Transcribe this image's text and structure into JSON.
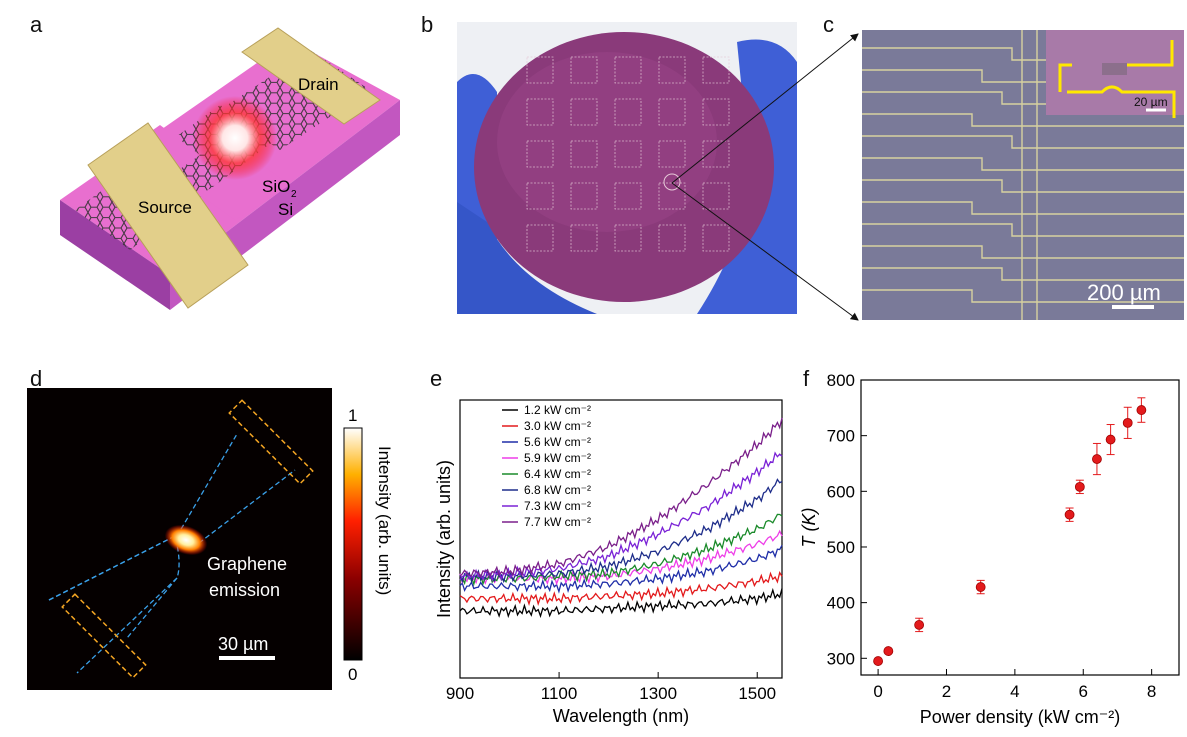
{
  "panels": {
    "a": {
      "letter": "a",
      "labels": {
        "drain": "Drain",
        "source": "Source",
        "sio2": "SiO",
        "sio2_sub": "2",
        "si": "Si"
      }
    },
    "b": {
      "letter": "b"
    },
    "c": {
      "letter": "c",
      "scale_main": "200 µm",
      "scale_inset": "20 µm"
    },
    "d": {
      "letter": "d",
      "annotation_line1": "Graphene",
      "annotation_line2": "emission",
      "scale": "30 µm",
      "colorbar_label": "Intensity (arb. units)",
      "colorbar_max": "1",
      "colorbar_min": "0"
    },
    "e": {
      "letter": "e"
    },
    "f": {
      "letter": "f"
    }
  },
  "colors": {
    "accent_red": "#e31a1c",
    "dashed_blue": "#3aa0e8",
    "dashed_orange": "#f5a623",
    "substrate_pink": "#e86fcf",
    "wafer_purple": "#8a3a7a",
    "glove_blue": "#3f5fd6"
  },
  "chart_data": [
    {
      "type": "line",
      "xlabel": "Wavelength (nm)",
      "ylabel": "Intensity (arb. units)",
      "xlim": [
        900,
        1550
      ],
      "x_ticks": [
        "900",
        "1100",
        "1300",
        "1500"
      ],
      "x_tick_values": [
        900,
        1100,
        1300,
        1500
      ],
      "legend_position": "top-left",
      "series": [
        {
          "name": "1.2 kW cm⁻²",
          "color": "#000000",
          "x": [
            900,
            1000,
            1100,
            1200,
            1300,
            1400,
            1500,
            1550
          ],
          "y": [
            0.23,
            0.23,
            0.23,
            0.24,
            0.25,
            0.26,
            0.28,
            0.3
          ]
        },
        {
          "name": "3.0 kW cm⁻²",
          "color": "#e31a1c",
          "x": [
            900,
            1000,
            1100,
            1200,
            1300,
            1400,
            1500,
            1550
          ],
          "y": [
            0.28,
            0.28,
            0.28,
            0.29,
            0.3,
            0.32,
            0.35,
            0.37
          ]
        },
        {
          "name": "5.6 kW cm⁻²",
          "color": "#1f2ea8",
          "x": [
            900,
            1000,
            1100,
            1200,
            1300,
            1400,
            1500,
            1550
          ],
          "y": [
            0.33,
            0.33,
            0.33,
            0.34,
            0.36,
            0.39,
            0.44,
            0.48
          ]
        },
        {
          "name": "5.9 kW cm⁻²",
          "color": "#ee3ee8",
          "x": [
            900,
            1000,
            1100,
            1200,
            1300,
            1400,
            1500,
            1550
          ],
          "y": [
            0.36,
            0.36,
            0.36,
            0.37,
            0.4,
            0.44,
            0.5,
            0.54
          ]
        },
        {
          "name": "6.4 kW cm⁻²",
          "color": "#1a8a2a",
          "x": [
            900,
            1000,
            1100,
            1200,
            1300,
            1400,
            1500,
            1550
          ],
          "y": [
            0.36,
            0.36,
            0.37,
            0.38,
            0.42,
            0.48,
            0.56,
            0.62
          ]
        },
        {
          "name": "6.8 kW cm⁻²",
          "color": "#1e2d8a",
          "x": [
            900,
            1000,
            1100,
            1200,
            1300,
            1400,
            1500,
            1550
          ],
          "y": [
            0.37,
            0.37,
            0.38,
            0.41,
            0.47,
            0.56,
            0.68,
            0.76
          ]
        },
        {
          "name": "7.3 kW cm⁻²",
          "color": "#7a22d6",
          "x": [
            900,
            1000,
            1100,
            1200,
            1300,
            1400,
            1500,
            1550
          ],
          "y": [
            0.37,
            0.38,
            0.4,
            0.45,
            0.54,
            0.65,
            0.79,
            0.87
          ]
        },
        {
          "name": "7.7 kW cm⁻²",
          "color": "#7a1f8a",
          "x": [
            900,
            1000,
            1100,
            1200,
            1300,
            1400,
            1500,
            1550
          ],
          "y": [
            0.38,
            0.39,
            0.42,
            0.49,
            0.6,
            0.74,
            0.9,
            1.0
          ]
        }
      ]
    },
    {
      "type": "scatter",
      "xlabel": "Power density (kW cm⁻²)",
      "ylabel": "T (K)",
      "xlim": [
        -0.5,
        8.8
      ],
      "ylim": [
        270,
        800
      ],
      "x_ticks": [
        "0",
        "2",
        "4",
        "6",
        "8"
      ],
      "x_tick_values": [
        0,
        2,
        4,
        6,
        8
      ],
      "y_ticks": [
        "300",
        "400",
        "500",
        "600",
        "700",
        "800"
      ],
      "y_tick_values": [
        300,
        400,
        500,
        600,
        700,
        800
      ],
      "marker_color": "#e31a1c",
      "x": [
        0,
        0.3,
        1.2,
        3.0,
        5.6,
        5.9,
        6.4,
        6.8,
        7.3,
        7.7
      ],
      "y": [
        295,
        313,
        360,
        428,
        558,
        608,
        658,
        693,
        723,
        746
      ],
      "yerr": [
        0,
        0,
        12,
        12,
        12,
        12,
        28,
        27,
        28,
        22
      ]
    }
  ]
}
